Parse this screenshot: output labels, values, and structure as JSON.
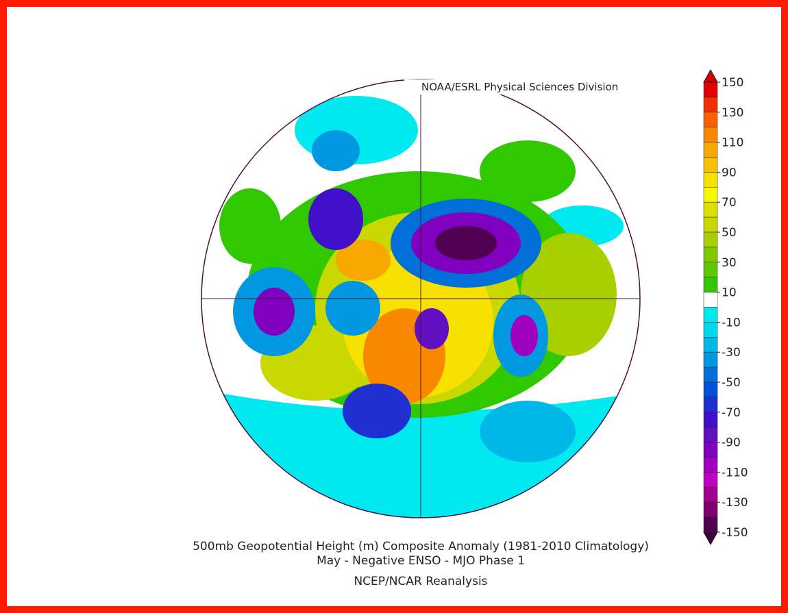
{
  "credit": "NOAA/ESRL Physical Sciences Division",
  "title": {
    "lines": [
      "500mb Geopotential Height (m) Composite Anomaly (1981-2010 Climatology)",
      "May - Negative ENSO - MJO Phase 1",
      "NCEP/NCAR Reanalysis"
    ]
  },
  "colorbar": {
    "ticks": [
      150,
      130,
      110,
      90,
      70,
      50,
      30,
      10,
      -10,
      -30,
      -50,
      -70,
      -90,
      -110,
      -130,
      -150
    ],
    "colors": [
      "#e00000",
      "#f03000",
      "#f86000",
      "#f88800",
      "#f8a800",
      "#f8c000",
      "#f8e000",
      "#f8f800",
      "#e0e000",
      "#c8d800",
      "#a8d000",
      "#80c800",
      "#60c800",
      "#30c800",
      "#ffffff",
      "#00e8f0",
      "#00d8f0",
      "#00b8e8",
      "#0098e0",
      "#0070d8",
      "#0050d8",
      "#2030d0",
      "#4010c8",
      "#6010c0",
      "#8000c0",
      "#a000c0",
      "#c000c0",
      "#a00090",
      "#800070",
      "#500050"
    ],
    "over_color": "#d00000",
    "under_color": "#400040"
  }
}
